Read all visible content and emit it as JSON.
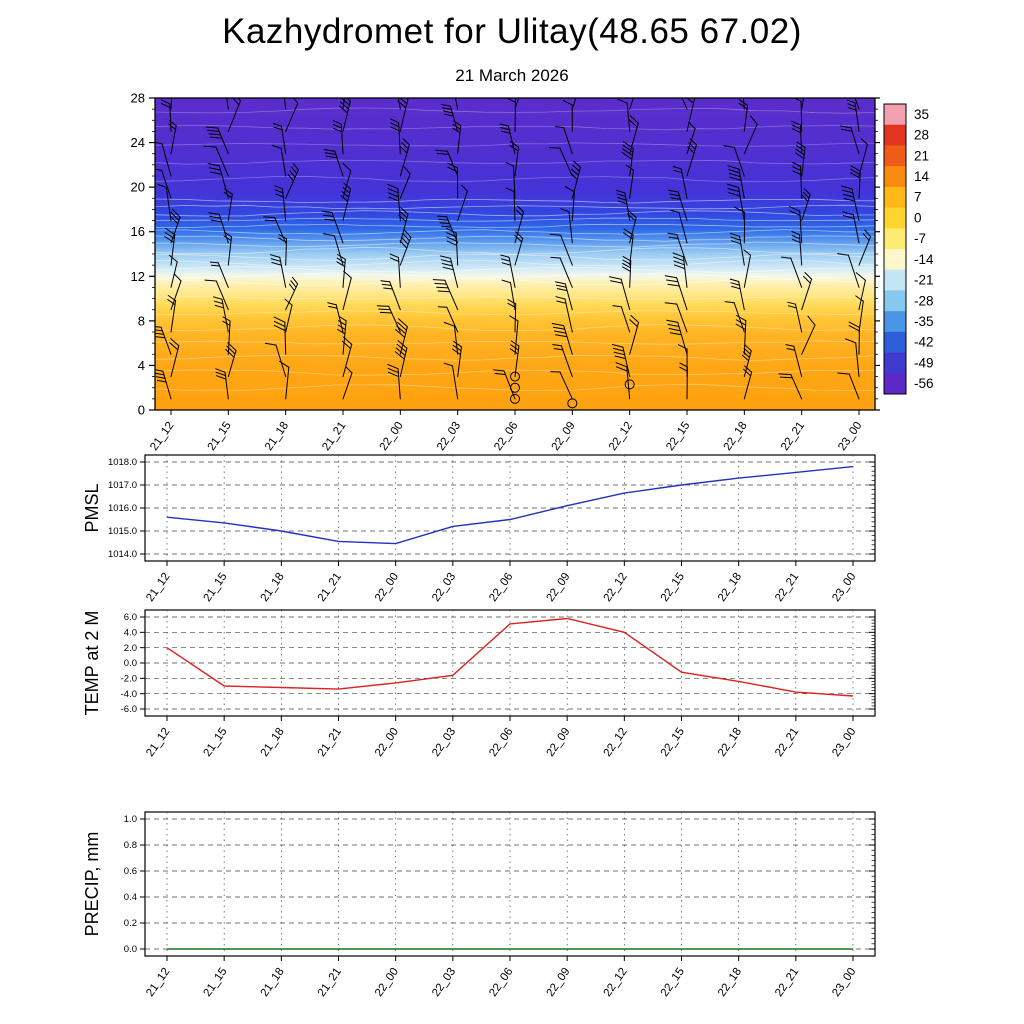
{
  "title": "Kazhydromet for Ulitay(48.65 67.02)",
  "subtitle": "21 March 2026",
  "x_categories": [
    "21_12",
    "21_15",
    "21_18",
    "21_21",
    "22_00",
    "22_03",
    "22_06",
    "22_09",
    "22_12",
    "22_15",
    "22_18",
    "22_21",
    "23_00"
  ],
  "chart_data": [
    {
      "type": "heatmap",
      "name": "Upper-air temperature cross-section with wind barbs",
      "ylim": [
        0,
        28
      ],
      "y_ticks": [
        0,
        4,
        8,
        12,
        16,
        20,
        24,
        28
      ],
      "x": [
        "21_12",
        "21_15",
        "21_18",
        "21_21",
        "22_00",
        "22_03",
        "22_06",
        "22_09",
        "22_12",
        "22_15",
        "22_18",
        "22_21",
        "23_00"
      ],
      "gradient_stops": [
        {
          "pos": 0.0,
          "color": "#5b2ecb"
        },
        {
          "pos": 0.17,
          "color": "#512fd0"
        },
        {
          "pos": 0.3,
          "color": "#4334d8"
        },
        {
          "pos": 0.37,
          "color": "#3247e0"
        },
        {
          "pos": 0.42,
          "color": "#2e6ae8"
        },
        {
          "pos": 0.46,
          "color": "#5d9bee"
        },
        {
          "pos": 0.5,
          "color": "#9ccdf2"
        },
        {
          "pos": 0.545,
          "color": "#cfe9f6"
        },
        {
          "pos": 0.57,
          "color": "#f4f8ea"
        },
        {
          "pos": 0.59,
          "color": "#fdf2bc"
        },
        {
          "pos": 0.625,
          "color": "#ffe98e"
        },
        {
          "pos": 0.66,
          "color": "#ffdb5c"
        },
        {
          "pos": 0.7,
          "color": "#ffc93a"
        },
        {
          "pos": 0.76,
          "color": "#ffb424"
        },
        {
          "pos": 0.86,
          "color": "#ffa716"
        },
        {
          "pos": 1.0,
          "color": "#ffa10e"
        }
      ],
      "colorbar": {
        "values": [
          35,
          28,
          21,
          14,
          7,
          0,
          -7,
          -14,
          -21,
          -28,
          -35,
          -42,
          -49,
          -56
        ],
        "colors": [
          "#f2a0ae",
          "#e23420",
          "#ee5d18",
          "#f88c10",
          "#ffb818",
          "#ffd42e",
          "#ffeb72",
          "#fdf6c8",
          "#c4e5f4",
          "#86c8ee",
          "#4a96e6",
          "#2f5fd8",
          "#3f3ad0",
          "#5c28c8"
        ]
      },
      "wind_barb_levels": [
        1,
        3,
        5,
        7,
        9,
        11,
        13,
        15,
        17,
        19,
        21,
        23,
        25,
        27
      ],
      "calm_circles": [
        {
          "col": 6,
          "levels": [
            1.0,
            2.0,
            3.0
          ]
        },
        {
          "col": 7,
          "levels": [
            0.6
          ]
        },
        {
          "col": 8,
          "levels": [
            2.3
          ]
        }
      ]
    },
    {
      "type": "line",
      "name": "PMSL",
      "line_color": "#2233bb",
      "x": [
        "21_12",
        "21_15",
        "21_18",
        "21_21",
        "22_00",
        "22_03",
        "22_06",
        "22_09",
        "22_12",
        "22_15",
        "22_18",
        "22_21",
        "23_00"
      ],
      "values": [
        1015.6,
        1015.35,
        1015.0,
        1014.55,
        1014.45,
        1015.2,
        1015.5,
        1016.1,
        1016.65,
        1017.0,
        1017.3,
        1017.55,
        1017.8
      ],
      "ylim": [
        1014.0,
        1018.0
      ],
      "y_ticks": [
        1014.0,
        1015.0,
        1016.0,
        1017.0,
        1018.0
      ],
      "decimals": 1
    },
    {
      "type": "line",
      "name": "TEMP at 2 M",
      "line_color": "#dd2222",
      "x": [
        "21_12",
        "21_15",
        "21_18",
        "21_21",
        "22_00",
        "22_03",
        "22_06",
        "22_09",
        "22_12",
        "22_15",
        "22_18",
        "22_21",
        "23_00"
      ],
      "values": [
        2.0,
        -3.0,
        -3.2,
        -3.4,
        -2.6,
        -1.6,
        5.1,
        5.8,
        4.0,
        -1.2,
        -2.4,
        -3.8,
        -4.3
      ],
      "ylim": [
        -6.0,
        6.0
      ],
      "y_ticks": [
        -6.0,
        -4.0,
        -2.0,
        0.0,
        2.0,
        4.0,
        6.0
      ],
      "decimals": 1
    },
    {
      "type": "line",
      "name": "PRECIP, mm",
      "line_color": "#117722",
      "x": [
        "21_12",
        "21_15",
        "21_18",
        "21_21",
        "22_00",
        "22_03",
        "22_06",
        "22_09",
        "22_12",
        "22_15",
        "22_18",
        "22_21",
        "23_00"
      ],
      "values": [
        0,
        0,
        0,
        0,
        0,
        0,
        0,
        0,
        0,
        0,
        0,
        0,
        0
      ],
      "ylim": [
        0.0,
        1.0
      ],
      "y_ticks": [
        0.0,
        0.2,
        0.4,
        0.6,
        0.8,
        1.0
      ],
      "decimals": 1
    }
  ]
}
